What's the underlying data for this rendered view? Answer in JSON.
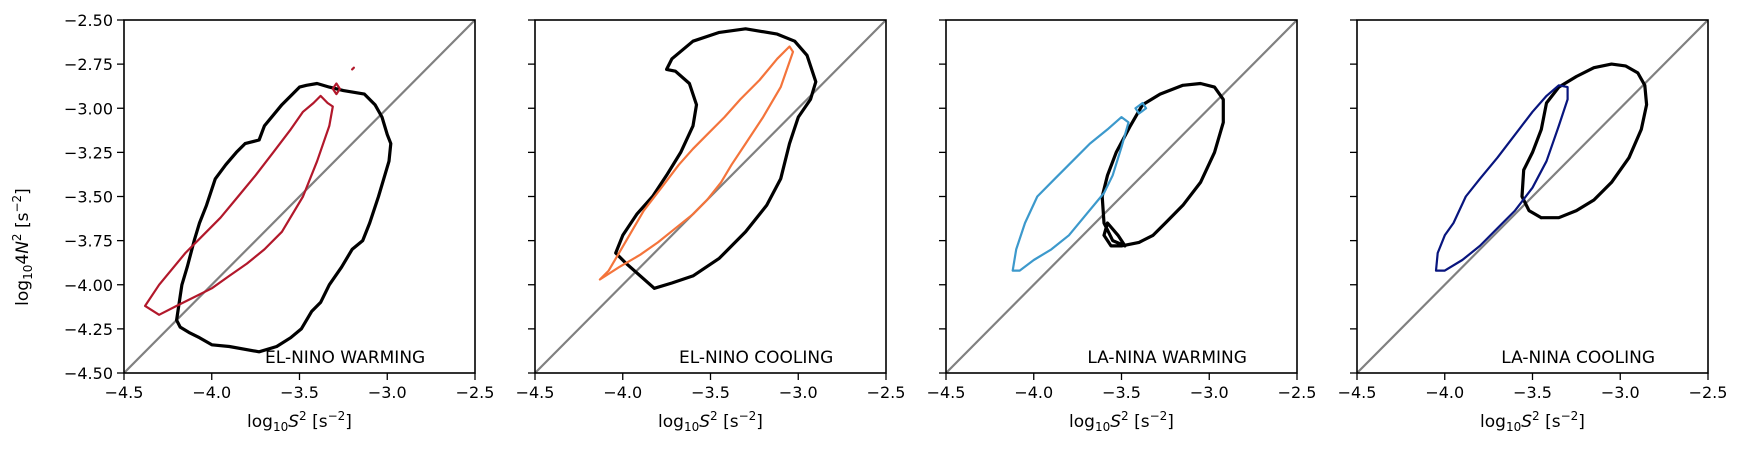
{
  "chart_data": {
    "type": "line",
    "layout": "1x4 panels, shared y-axis",
    "xlabel": "log10S2 [s−2]",
    "ylabel": "log104N2 [s−2]",
    "xlim": [
      -4.5,
      -2.5
    ],
    "ylim": [
      -4.5,
      -2.5
    ],
    "xticks": [
      -4.5,
      -4.0,
      -3.5,
      -3.0,
      -2.5
    ],
    "xtick_labels": [
      "−4.5",
      "−4.0",
      "−3.5",
      "−3.0",
      "−2.5"
    ],
    "yticks": [
      -4.5,
      -4.25,
      -4.0,
      -3.75,
      -3.5,
      -3.25,
      -3.0,
      -2.75,
      -2.5
    ],
    "ytick_labels": [
      "−4.50",
      "−4.25",
      "−4.00",
      "−3.75",
      "−3.50",
      "−3.25",
      "−3.00",
      "−2.75",
      "−2.50"
    ],
    "grid": false,
    "reference_line": {
      "description": "1:1 line y = x",
      "x": [
        -4.5,
        -2.5
      ],
      "y": [
        -4.5,
        -2.5
      ],
      "color": "#808080"
    },
    "panels": [
      {
        "title": "EL-NINO WARMING",
        "contours": [
          {
            "role": "reference",
            "color": "#000000",
            "x": [
              -4.2,
              -4.17,
              -4.14,
              -4.1,
              -4.07,
              -4.03,
              -3.98,
              -3.92,
              -3.86,
              -3.81,
              -3.73,
              -3.7,
              -3.6,
              -3.5,
              -3.46,
              -3.4,
              -3.33,
              -3.25,
              -3.13,
              -3.07,
              -3.03,
              -3.0,
              -2.98,
              -2.99,
              -3.05,
              -3.1,
              -3.14,
              -3.2,
              -3.26,
              -3.33,
              -3.38,
              -3.43,
              -3.49,
              -3.55,
              -3.63,
              -3.73,
              -3.9,
              -4.0,
              -4.07,
              -4.13,
              -4.18,
              -4.2
            ],
            "y": [
              -4.2,
              -4.0,
              -3.9,
              -3.75,
              -3.65,
              -3.55,
              -3.4,
              -3.32,
              -3.25,
              -3.2,
              -3.18,
              -3.1,
              -2.98,
              -2.88,
              -2.87,
              -2.86,
              -2.88,
              -2.9,
              -2.92,
              -2.98,
              -3.05,
              -3.15,
              -3.2,
              -3.3,
              -3.5,
              -3.65,
              -3.75,
              -3.8,
              -3.9,
              -4.0,
              -4.1,
              -4.15,
              -4.25,
              -4.3,
              -4.35,
              -4.38,
              -4.35,
              -4.34,
              -4.3,
              -4.27,
              -4.24,
              -4.2
            ]
          },
          {
            "role": "warming",
            "color": "#b2182b",
            "x": [
              -4.38,
              -4.3,
              -4.15,
              -4.05,
              -3.95,
              -3.85,
              -3.75,
              -3.65,
              -3.55,
              -3.48,
              -3.42,
              -3.38,
              -3.34,
              -3.31,
              -3.33,
              -3.4,
              -3.48,
              -3.6,
              -3.7,
              -3.8,
              -3.9,
              -4.0,
              -4.1,
              -4.2,
              -4.3,
              -4.38
            ],
            "y": [
              -4.12,
              -4.0,
              -3.82,
              -3.72,
              -3.62,
              -3.5,
              -3.38,
              -3.25,
              -3.12,
              -3.02,
              -2.97,
              -2.93,
              -2.97,
              -2.99,
              -3.1,
              -3.3,
              -3.5,
              -3.7,
              -3.8,
              -3.88,
              -3.95,
              -4.02,
              -4.07,
              -4.12,
              -4.17,
              -4.12
            ]
          },
          {
            "role": "warming",
            "color": "#b2182b",
            "x": [
              -3.31,
              -3.29,
              -3.27,
              -3.29,
              -3.31
            ],
            "y": [
              -2.89,
              -2.86,
              -2.89,
              -2.92,
              -2.89
            ]
          },
          {
            "role": "warming",
            "color": "#b2182b",
            "x": [
              -3.2,
              -3.19,
              -3.2
            ],
            "y": [
              -2.78,
              -2.77,
              -2.78
            ]
          }
        ]
      },
      {
        "title": "EL-NINO COOLING",
        "contours": [
          {
            "role": "reference",
            "color": "#000000",
            "x": [
              -3.82,
              -3.9,
              -3.98,
              -4.04,
              -4.0,
              -3.92,
              -3.83,
              -3.75,
              -3.67,
              -3.6,
              -3.58,
              -3.62,
              -3.7,
              -3.75,
              -3.72,
              -3.6,
              -3.45,
              -3.3,
              -3.12,
              -3.02,
              -2.95,
              -2.9,
              -2.93,
              -3.0,
              -3.05,
              -3.1,
              -3.18,
              -3.3,
              -3.45,
              -3.6,
              -3.72,
              -3.82
            ],
            "y": [
              -4.02,
              -3.95,
              -3.88,
              -3.82,
              -3.72,
              -3.6,
              -3.5,
              -3.38,
              -3.25,
              -3.1,
              -2.98,
              -2.86,
              -2.79,
              -2.78,
              -2.72,
              -2.62,
              -2.57,
              -2.55,
              -2.58,
              -2.62,
              -2.7,
              -2.85,
              -2.95,
              -3.05,
              -3.2,
              -3.4,
              -3.55,
              -3.7,
              -3.85,
              -3.95,
              -3.99,
              -4.02
            ]
          },
          {
            "role": "cooling",
            "color": "#f4743b",
            "x": [
              -4.13,
              -4.08,
              -3.98,
              -3.88,
              -3.78,
              -3.68,
              -3.6,
              -3.52,
              -3.42,
              -3.33,
              -3.22,
              -3.12,
              -3.05,
              -3.03,
              -3.1,
              -3.2,
              -3.3,
              -3.38,
              -3.44,
              -3.52,
              -3.6,
              -3.7,
              -3.8,
              -3.9,
              -4.02,
              -4.13
            ],
            "y": [
              -3.97,
              -3.92,
              -3.75,
              -3.58,
              -3.45,
              -3.32,
              -3.23,
              -3.15,
              -3.05,
              -2.95,
              -2.84,
              -2.72,
              -2.65,
              -2.68,
              -2.88,
              -3.05,
              -3.2,
              -3.32,
              -3.42,
              -3.52,
              -3.6,
              -3.68,
              -3.76,
              -3.83,
              -3.9,
              -3.97
            ]
          }
        ]
      },
      {
        "title": "LA-NINA WARMING",
        "contours": [
          {
            "role": "reference",
            "color": "#000000",
            "x": [
              -3.48,
              -3.55,
              -3.6,
              -3.61,
              -3.58,
              -3.53,
              -3.45,
              -3.38,
              -3.28,
              -3.15,
              -3.05,
              -2.97,
              -2.92,
              -2.92,
              -2.97,
              -3.05,
              -3.15,
              -3.25,
              -3.32,
              -3.4,
              -3.5,
              -3.56,
              -3.6,
              -3.58,
              -3.52,
              -3.48
            ],
            "y": [
              -3.78,
              -3.75,
              -3.65,
              -3.5,
              -3.38,
              -3.25,
              -3.1,
              -2.98,
              -2.92,
              -2.87,
              -2.86,
              -2.88,
              -2.95,
              -3.08,
              -3.25,
              -3.42,
              -3.55,
              -3.65,
              -3.72,
              -3.76,
              -3.78,
              -3.78,
              -3.72,
              -3.65,
              -3.72,
              -3.78
            ]
          },
          {
            "role": "warming",
            "color": "#3c99cc",
            "x": [
              -4.12,
              -4.1,
              -4.05,
              -3.98,
              -3.88,
              -3.78,
              -3.68,
              -3.58,
              -3.5,
              -3.46,
              -3.5,
              -3.55,
              -3.6,
              -3.7,
              -3.8,
              -3.9,
              -4.0,
              -4.08,
              -4.12
            ],
            "y": [
              -3.92,
              -3.8,
              -3.65,
              -3.5,
              -3.4,
              -3.3,
              -3.2,
              -3.12,
              -3.05,
              -3.08,
              -3.22,
              -3.38,
              -3.48,
              -3.6,
              -3.72,
              -3.8,
              -3.86,
              -3.92,
              -3.92
            ]
          },
          {
            "role": "warming",
            "color": "#3c99cc",
            "x": [
              -3.42,
              -3.38,
              -3.36,
              -3.4,
              -3.42
            ],
            "y": [
              -3.0,
              -2.97,
              -3.0,
              -3.03,
              -3.0
            ]
          }
        ]
      },
      {
        "title": "LA-NINA COOLING",
        "contours": [
          {
            "role": "reference",
            "color": "#000000",
            "x": [
              -3.45,
              -3.52,
              -3.56,
              -3.55,
              -3.5,
              -3.45,
              -3.42,
              -3.35,
              -3.25,
              -3.15,
              -3.05,
              -2.97,
              -2.9,
              -2.86,
              -2.85,
              -2.88,
              -2.95,
              -3.05,
              -3.15,
              -3.25,
              -3.35,
              -3.42,
              -3.45
            ],
            "y": [
              -3.62,
              -3.58,
              -3.5,
              -3.35,
              -3.25,
              -3.12,
              -2.97,
              -2.88,
              -2.82,
              -2.77,
              -2.75,
              -2.76,
              -2.8,
              -2.87,
              -2.98,
              -3.12,
              -3.28,
              -3.42,
              -3.52,
              -3.58,
              -3.62,
              -3.62,
              -3.62
            ]
          },
          {
            "role": "cooling",
            "color": "#08157e",
            "x": [
              -4.05,
              -4.04,
              -4.0,
              -3.95,
              -3.88,
              -3.8,
              -3.7,
              -3.6,
              -3.5,
              -3.42,
              -3.35,
              -3.3,
              -3.3,
              -3.35,
              -3.42,
              -3.5,
              -3.6,
              -3.7,
              -3.8,
              -3.9,
              -4.0,
              -4.05
            ],
            "y": [
              -3.92,
              -3.82,
              -3.72,
              -3.65,
              -3.5,
              -3.4,
              -3.28,
              -3.15,
              -3.02,
              -2.93,
              -2.87,
              -2.88,
              -2.95,
              -3.1,
              -3.3,
              -3.45,
              -3.58,
              -3.68,
              -3.78,
              -3.86,
              -3.92,
              -3.92
            ]
          }
        ]
      }
    ]
  }
}
